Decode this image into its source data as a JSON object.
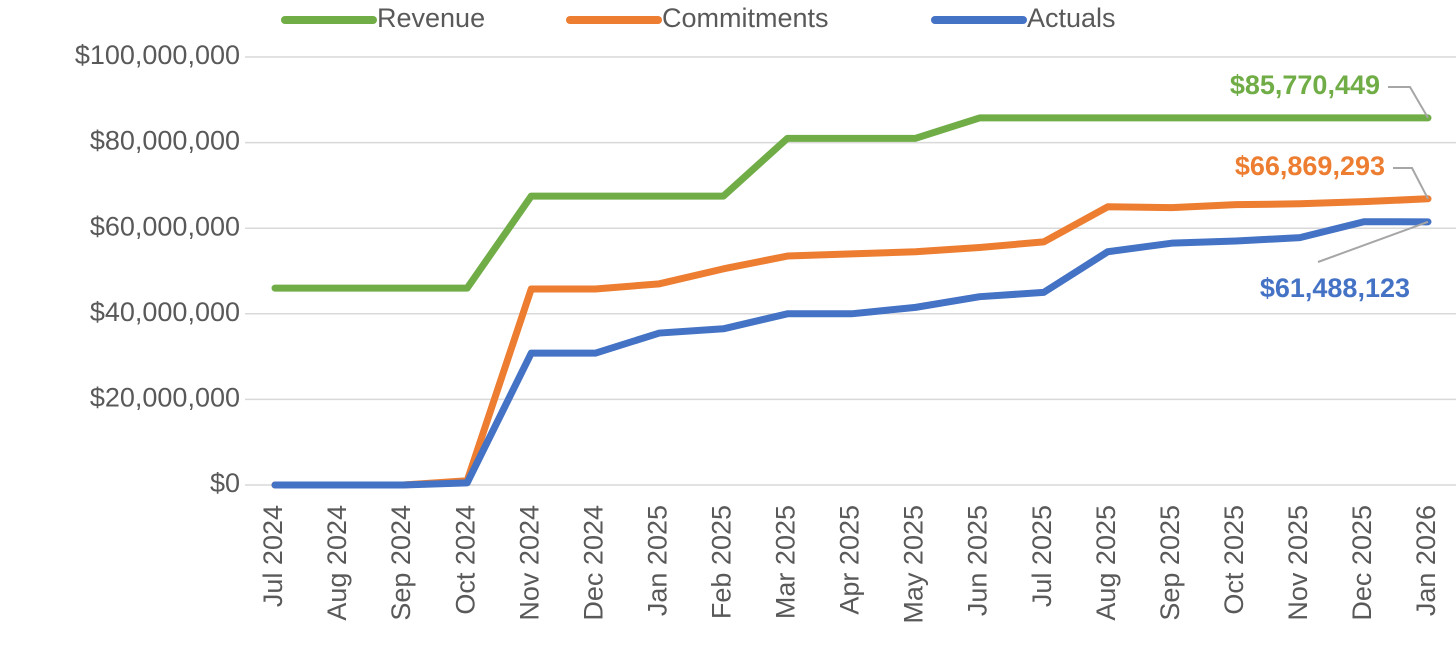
{
  "chart_data": {
    "type": "line",
    "categories": [
      "Jul 2024",
      "Aug 2024",
      "Sep 2024",
      "Oct 2024",
      "Nov 2024",
      "Dec 2024",
      "Jan 2025",
      "Feb 2025",
      "Mar 2025",
      "Apr 2025",
      "May 2025",
      "Jun 2025",
      "Jul 2025",
      "Aug 2025",
      "Sep 2025",
      "Oct 2025",
      "Nov 2025",
      "Dec 2025",
      "Jan 2026"
    ],
    "series": [
      {
        "name": "Revenue",
        "color": "#70ad47",
        "values": [
          46000000,
          46000000,
          46000000,
          46000000,
          67500000,
          67500000,
          67500000,
          67500000,
          81000000,
          81000000,
          81000000,
          85770449,
          85770449,
          85770449,
          85770449,
          85770449,
          85770449,
          85770449,
          85770449
        ],
        "value_labels": [
          null,
          null,
          null,
          null,
          null,
          null,
          null,
          null,
          null,
          null,
          null,
          null,
          null,
          null,
          null,
          null,
          null,
          null,
          "$85,770,449"
        ]
      },
      {
        "name": "Commitments",
        "color": "#ed7d31",
        "values": [
          0,
          0,
          0,
          1000000,
          45800000,
          45800000,
          47000000,
          50500000,
          53500000,
          54000000,
          54500000,
          55500000,
          56800000,
          65000000,
          64800000,
          65500000,
          65700000,
          66200000,
          66869293
        ],
        "value_labels": [
          null,
          null,
          null,
          null,
          null,
          null,
          null,
          null,
          null,
          null,
          null,
          null,
          null,
          null,
          null,
          null,
          null,
          null,
          "$66,869,293"
        ]
      },
      {
        "name": "Actuals",
        "color": "#4472c4",
        "values": [
          0,
          0,
          0,
          500000,
          30800000,
          30800000,
          35500000,
          36500000,
          40000000,
          40000000,
          41500000,
          44000000,
          45000000,
          54500000,
          56500000,
          57000000,
          57800000,
          61500000,
          61488123
        ],
        "value_labels": [
          null,
          null,
          null,
          null,
          null,
          null,
          null,
          null,
          null,
          null,
          null,
          null,
          null,
          null,
          null,
          null,
          null,
          null,
          "$61,488,123"
        ]
      }
    ],
    "ylim": [
      0,
      100000000
    ],
    "yticks": [
      {
        "value": 0,
        "label": "$0"
      },
      {
        "value": 20000000,
        "label": "$20,000,000"
      },
      {
        "value": 40000000,
        "label": "$40,000,000"
      },
      {
        "value": 60000000,
        "label": "$60,000,000"
      },
      {
        "value": 80000000,
        "label": "$80,000,000"
      },
      {
        "value": 100000000,
        "label": "$100,000,000"
      }
    ],
    "grid": true,
    "legend": "top"
  }
}
